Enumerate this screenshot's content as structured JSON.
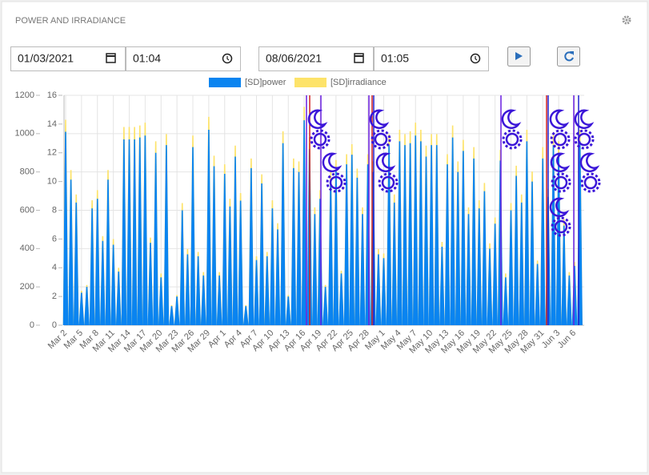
{
  "header": {
    "title": "POWER AND IRRADIANCE"
  },
  "controls": {
    "start_date": "01/03/2021",
    "start_time": "01:04",
    "end_date": "08/06/2021",
    "end_time": "01:05"
  },
  "chart_data": {
    "type": "area",
    "categories": [
      "Mar 2",
      null,
      null,
      "Mar 5",
      null,
      null,
      "Mar 8",
      null,
      null,
      "Mar 11",
      null,
      null,
      "Mar 14",
      null,
      null,
      "Mar 17",
      null,
      null,
      "Mar 20",
      null,
      null,
      "Mar 23",
      null,
      null,
      "Mar 26",
      null,
      null,
      "Mar 29",
      null,
      null,
      "Apr 1",
      null,
      null,
      "Apr 4",
      null,
      null,
      "Apr 7",
      null,
      null,
      "Apr 10",
      null,
      null,
      "Apr 13",
      null,
      null,
      "Apr 16",
      null,
      null,
      "Apr 19",
      null,
      null,
      "Apr 22",
      null,
      null,
      "Apr 25",
      null,
      null,
      "Apr 28",
      null,
      null,
      "May 1",
      null,
      null,
      "May 4",
      null,
      null,
      "May 7",
      null,
      null,
      "May 10",
      null,
      null,
      "May 13",
      null,
      null,
      "May 16",
      null,
      null,
      "May 19",
      null,
      null,
      "May 22",
      null,
      null,
      "May 25",
      null,
      null,
      "May 28",
      null,
      null,
      "May 31",
      null,
      null,
      "Jun 3",
      null,
      null,
      "Jun 6",
      null
    ],
    "series": [
      {
        "name": "[SD]power",
        "color": "#0a84f0",
        "values": [
          1010,
          760,
          640,
          170,
          200,
          610,
          660,
          440,
          760,
          420,
          280,
          970,
          970,
          970,
          980,
          990,
          430,
          900,
          250,
          940,
          100,
          150,
          600,
          370,
          930,
          360,
          260,
          1020,
          830,
          260,
          790,
          620,
          880,
          650,
          100,
          820,
          340,
          740,
          360,
          610,
          500,
          950,
          150,
          820,
          800,
          1070,
          920,
          580,
          660,
          200,
          760,
          810,
          270,
          840,
          890,
          770,
          580,
          840,
          800,
          370,
          350,
          940,
          640,
          960,
          940,
          950,
          990,
          960,
          880,
          940,
          940,
          410,
          840,
          980,
          800,
          910,
          580,
          870,
          610,
          700,
          400,
          530,
          860,
          250,
          600,
          780,
          640,
          960,
          750,
          320,
          870,
          670,
          940,
          900,
          520,
          260,
          310,
          960
        ]
      },
      {
        "name": "[SD]irradiance",
        "color": "#fde36a",
        "axis": "y2",
        "values": [
          14.3,
          10.8,
          9.1,
          2.4,
          2.8,
          8.7,
          9.4,
          6.2,
          10.8,
          6.0,
          4.0,
          13.8,
          13.8,
          13.8,
          13.9,
          14.1,
          6.1,
          12.8,
          3.6,
          13.3,
          1.4,
          2.1,
          8.5,
          5.3,
          13.2,
          5.1,
          3.7,
          14.5,
          11.8,
          3.7,
          11.2,
          8.8,
          12.5,
          9.2,
          1.4,
          11.6,
          4.8,
          10.5,
          5.1,
          8.7,
          7.1,
          13.5,
          2.1,
          11.6,
          11.4,
          15.2,
          13.1,
          8.2,
          9.4,
          2.8,
          10.8,
          11.5,
          3.8,
          11.9,
          12.6,
          10.9,
          8.2,
          11.9,
          11.4,
          5.3,
          5.0,
          13.3,
          9.1,
          13.6,
          13.3,
          13.5,
          14.1,
          13.6,
          12.5,
          13.3,
          13.3,
          5.8,
          11.9,
          13.9,
          11.4,
          12.9,
          8.2,
          12.4,
          8.7,
          9.9,
          5.7,
          7.5,
          12.2,
          3.6,
          8.5,
          11.1,
          9.1,
          13.6,
          10.7,
          4.5,
          12.4,
          9.5,
          13.3,
          12.8,
          7.4,
          3.7,
          4.4,
          13.6
        ]
      }
    ],
    "ylim": [
      0,
      1200
    ],
    "yticks": [
      0,
      200,
      400,
      600,
      800,
      1000,
      1200
    ],
    "y2lim": [
      0,
      16
    ],
    "y2ticks": [
      0,
      2,
      4,
      6,
      8,
      10,
      12,
      14,
      16
    ],
    "grid": true
  }
}
